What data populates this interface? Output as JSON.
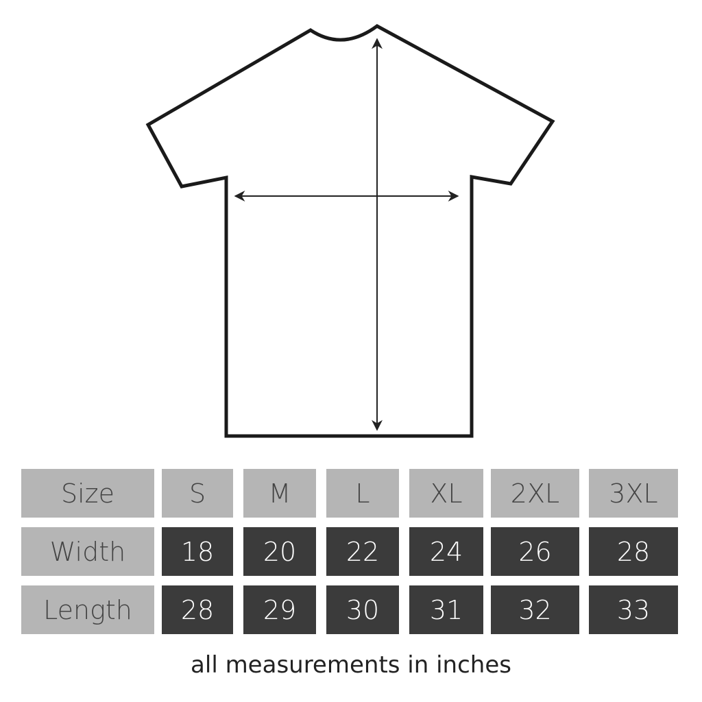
{
  "table": {
    "row_labels": [
      "Size",
      "Width",
      "Length"
    ],
    "sizes": [
      "S",
      "M",
      "L",
      "XL",
      "2XL",
      "3XL"
    ],
    "width": [
      "18",
      "20",
      "22",
      "24",
      "26",
      "28"
    ],
    "length": [
      "28",
      "29",
      "30",
      "31",
      "32",
      "33"
    ]
  },
  "footnote": "all measurements in inches",
  "colors": {
    "header_cell": "#b5b5b5",
    "value_cell": "#3b3b3b",
    "outline": "#1a1a1a"
  }
}
